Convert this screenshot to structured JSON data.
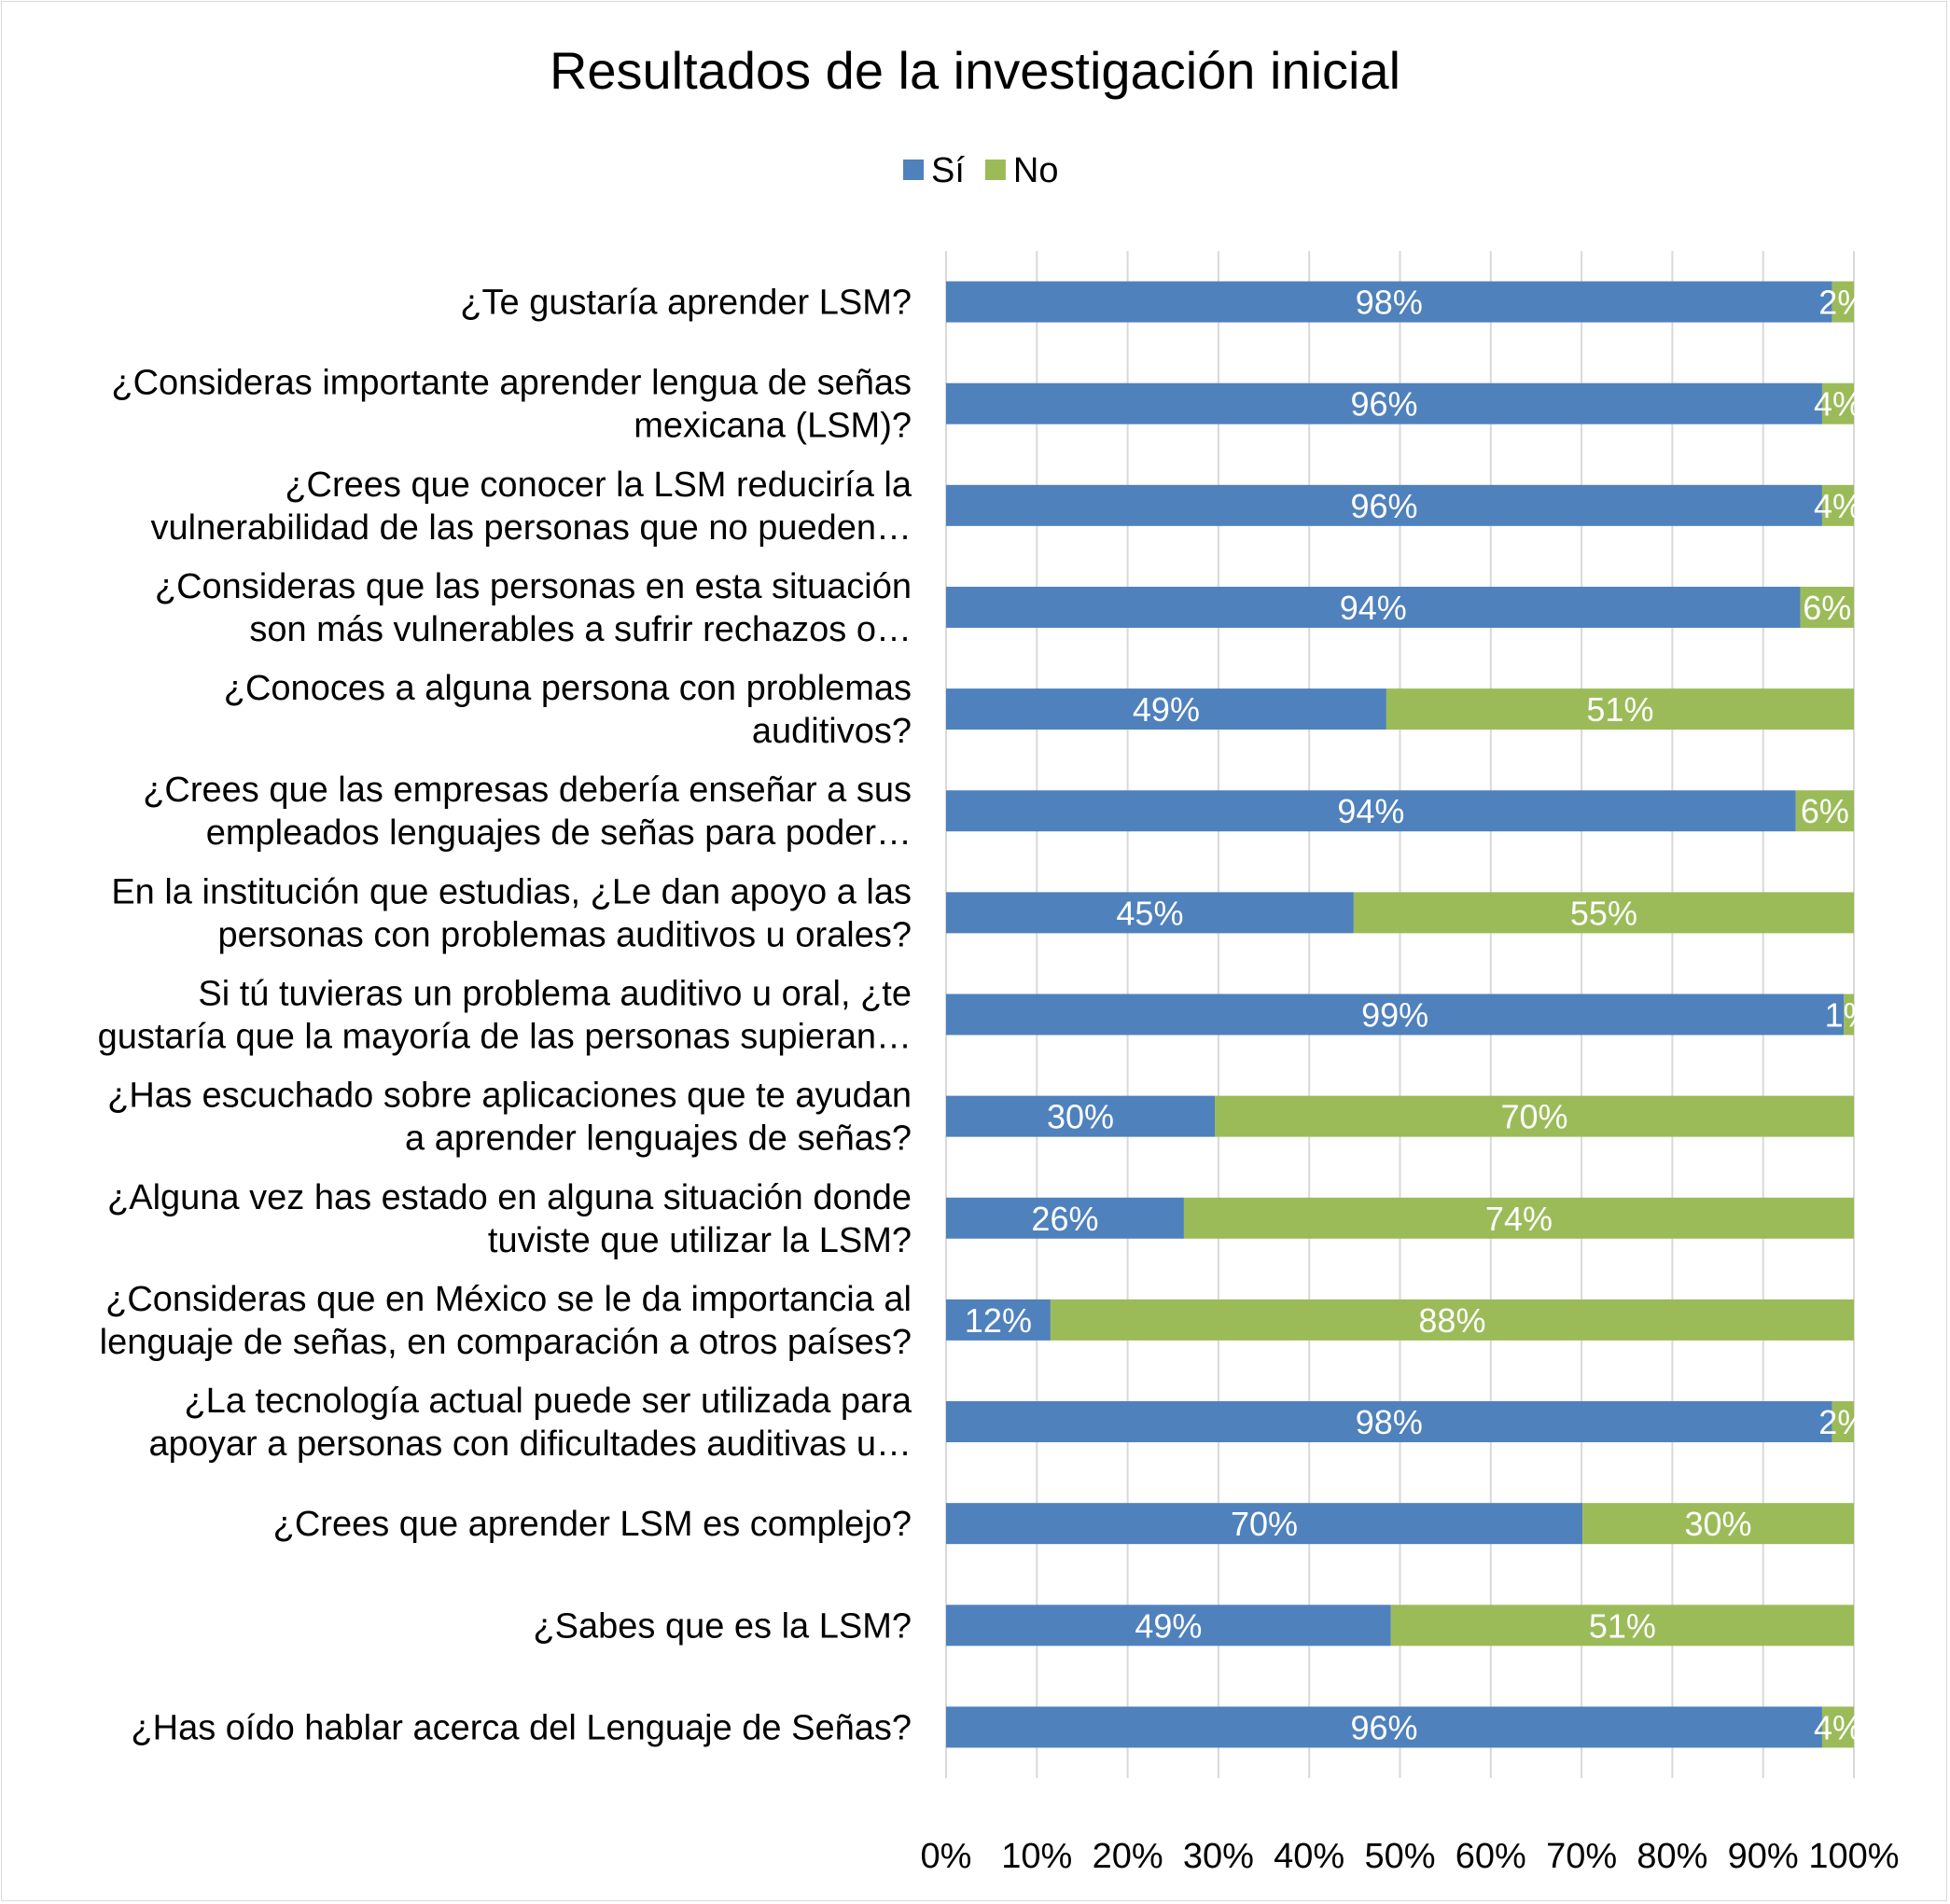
{
  "chart_data": {
    "type": "bar",
    "orientation": "horizontal",
    "stacked": "percent",
    "title": "Resultados de la investigación inicial",
    "legend_position": "top",
    "grid": true,
    "xlim": [
      0,
      100
    ],
    "x_ticks": [
      "0%",
      "10%",
      "20%",
      "30%",
      "40%",
      "50%",
      "60%",
      "70%",
      "80%",
      "90%",
      "100%"
    ],
    "categories": [
      [
        "¿Te gustaría aprender LSM?"
      ],
      [
        "¿Consideras importante aprender lengua de señas",
        "mexicana (LSM)?"
      ],
      [
        "¿Crees que conocer la LSM reduciría la",
        "vulnerabilidad de las personas que no pueden…"
      ],
      [
        "¿Consideras que las personas en esta situación",
        "son más vulnerables a sufrir rechazos o…"
      ],
      [
        "¿Conoces a alguna persona con problemas",
        "auditivos?"
      ],
      [
        "¿Crees que las empresas debería enseñar a sus",
        "empleados lenguajes de señas para poder…"
      ],
      [
        "En la institución que estudias, ¿Le dan apoyo a las",
        "personas con problemas auditivos u orales?"
      ],
      [
        "Si tú tuvieras un problema auditivo u oral, ¿te",
        "gustaría que la mayoría de las personas supieran…"
      ],
      [
        "¿Has escuchado sobre aplicaciones que te ayudan",
        "a aprender lenguajes de señas?"
      ],
      [
        "¿Alguna vez has estado en alguna situación donde",
        "tuviste que utilizar la LSM?"
      ],
      [
        "¿Consideras que en México se le da importancia al",
        "lenguaje de señas, en comparación a otros países?"
      ],
      [
        "¿La tecnología actual puede ser utilizada para",
        "apoyar a personas con dificultades auditivas u…"
      ],
      [
        "¿Crees que aprender LSM es complejo?"
      ],
      [
        "¿Sabes que es la LSM?"
      ],
      [
        "¿Has oído hablar acerca del Lenguaje de Señas?"
      ]
    ],
    "series": [
      {
        "name": "Sí",
        "color": "#4f81bd",
        "values": [
          97.6,
          96.5,
          96.5,
          94.1,
          48.5,
          93.6,
          44.9,
          98.9,
          29.6,
          26.2,
          11.5,
          97.6,
          70.1,
          49.0,
          96.5
        ],
        "labels": [
          "98%",
          "96%",
          "96%",
          "94%",
          "49%",
          "94%",
          "45%",
          "99%",
          "30%",
          "26%",
          "12%",
          "98%",
          "70%",
          "49%",
          "96%"
        ]
      },
      {
        "name": "No",
        "color": "#9bbb59",
        "values": [
          2.4,
          3.5,
          3.5,
          5.9,
          51.5,
          6.4,
          55.1,
          1.1,
          70.4,
          73.8,
          88.5,
          2.4,
          29.9,
          51.0,
          3.5
        ],
        "labels": [
          "2%",
          "4%",
          "4%",
          "6%",
          "51%",
          "6%",
          "55%",
          "1%",
          "70%",
          "74%",
          "88%",
          "2%",
          "30%",
          "51%",
          "4%"
        ]
      }
    ]
  }
}
